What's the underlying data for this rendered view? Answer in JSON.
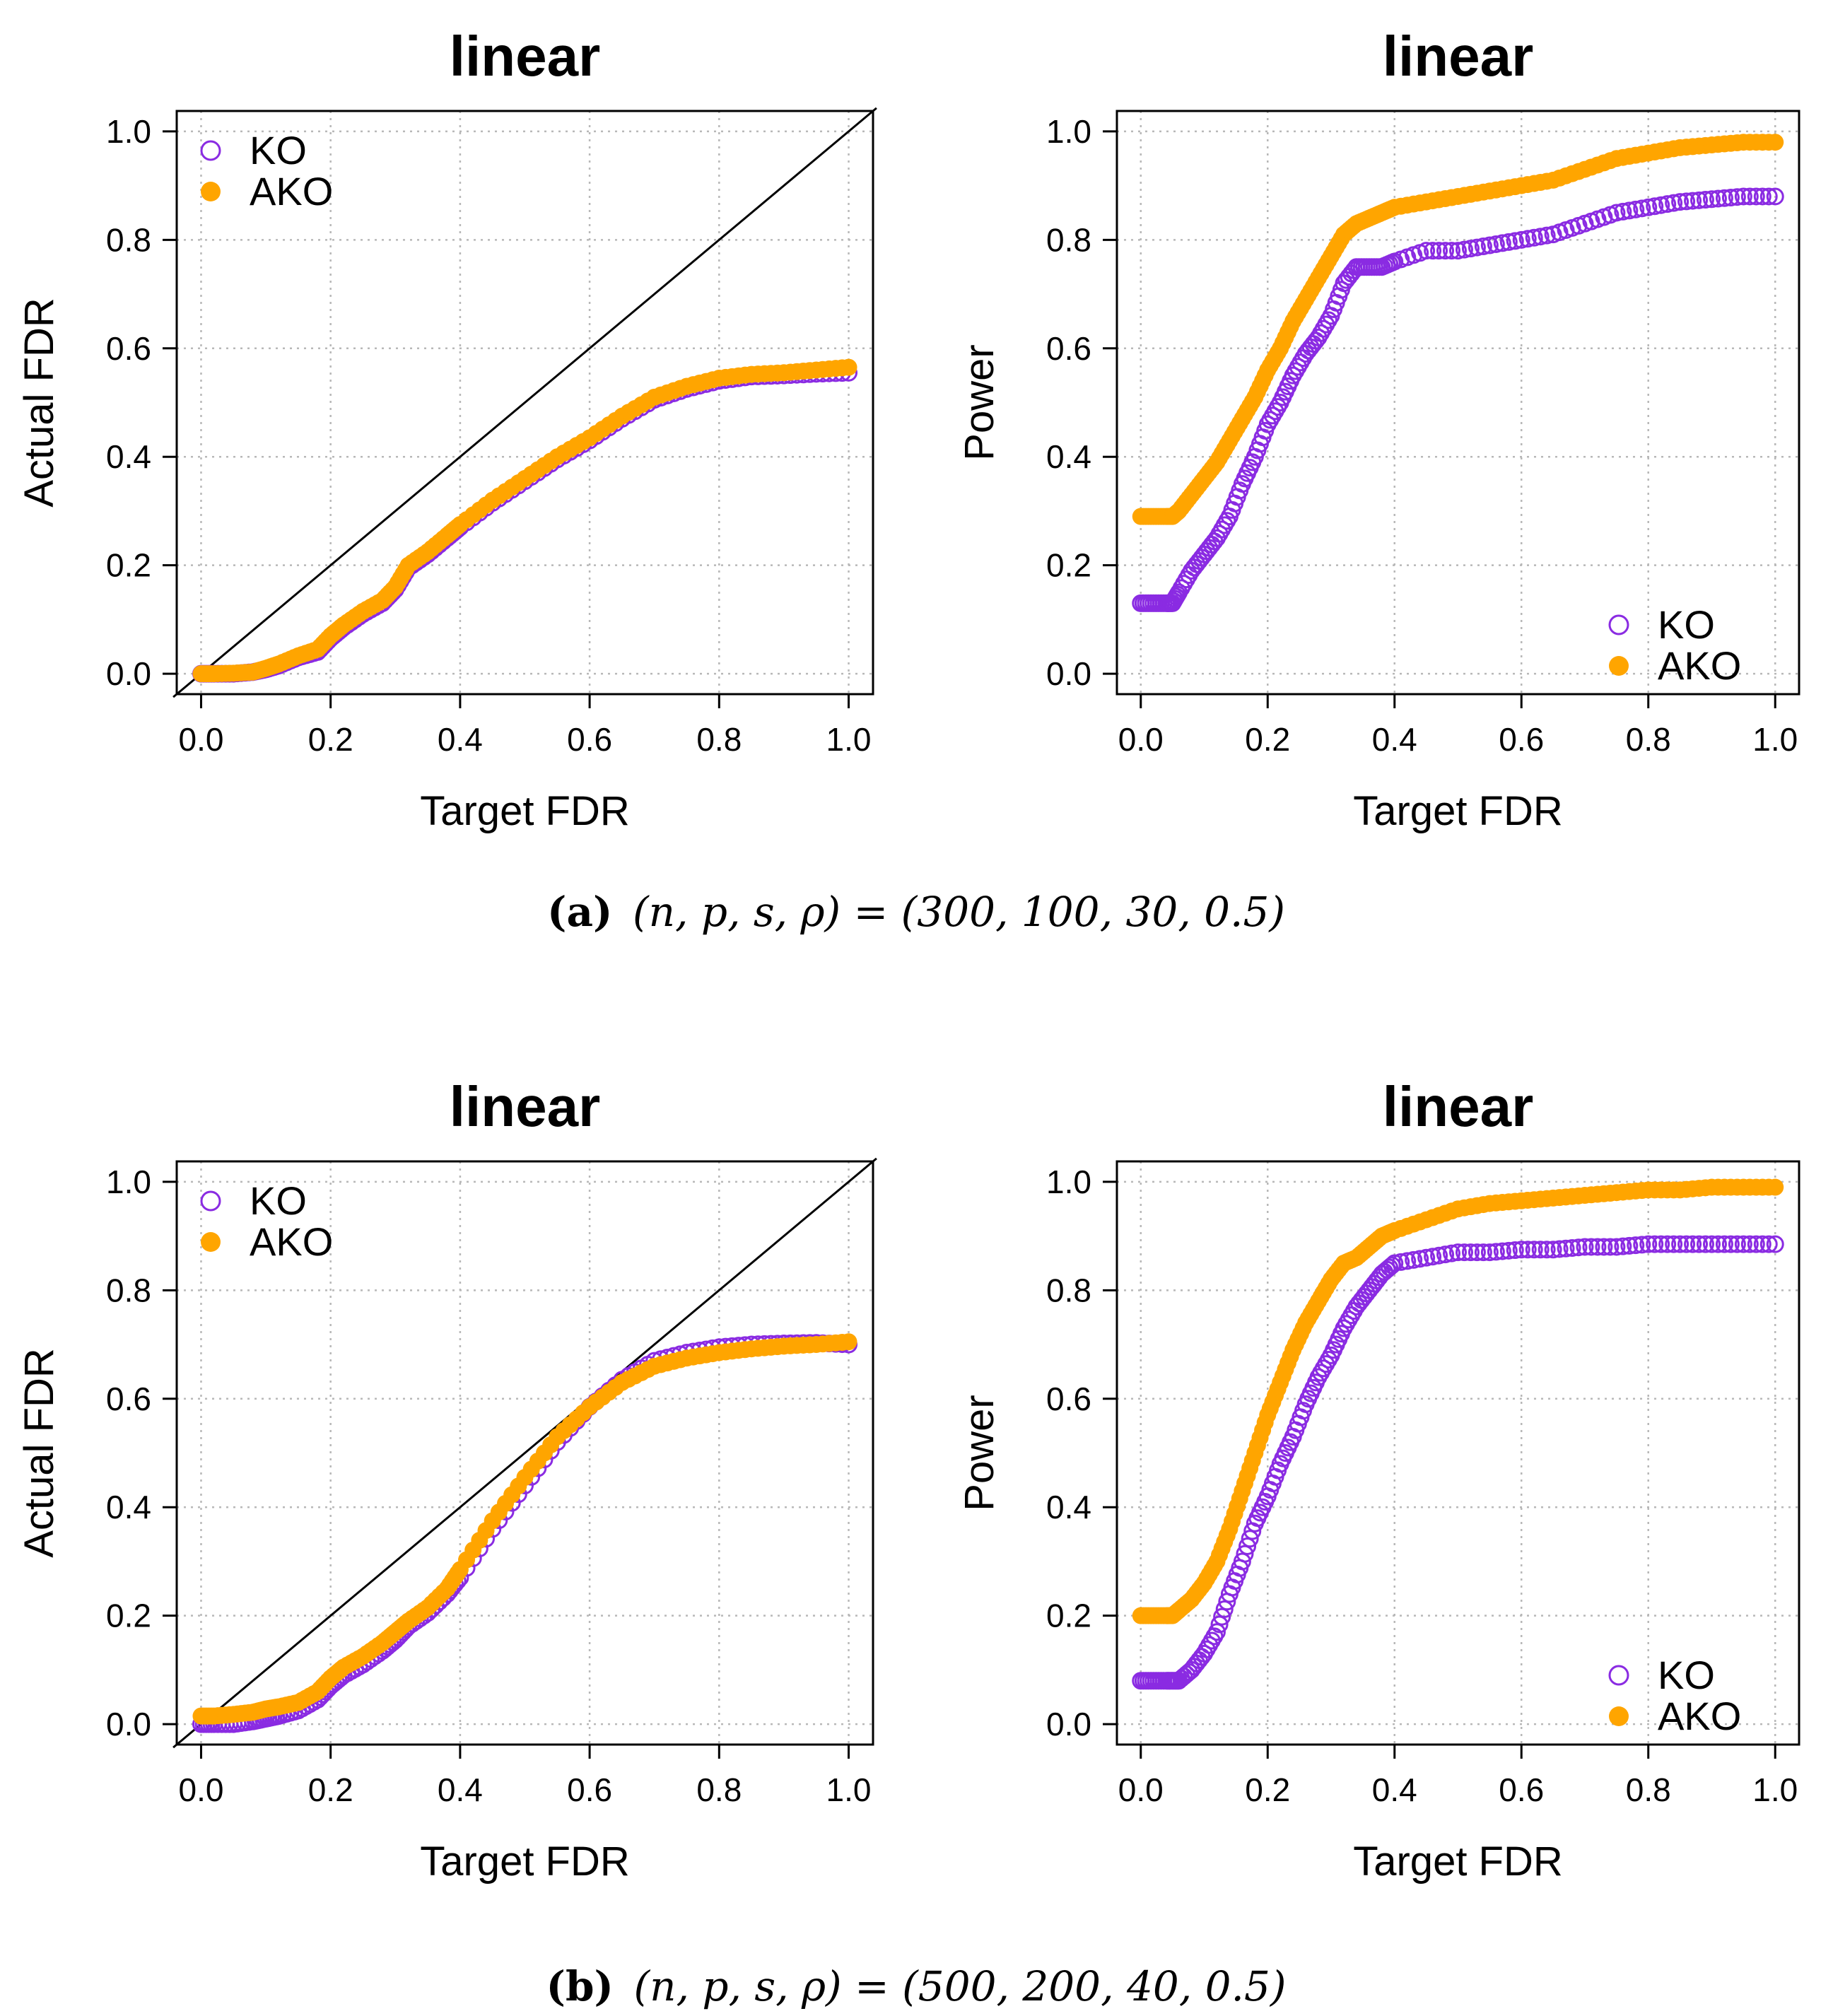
{
  "colors": {
    "ko": "#8a2be2",
    "ako": "#ffa500",
    "grid": "#b8b8b8",
    "diagonal": "#000000",
    "text": "#000000"
  },
  "captions": [
    {
      "label": "(a)",
      "params": "(n, p, s, ρ) = (300, 100, 30, 0.5)"
    },
    {
      "label": "(b)",
      "params": "(n, p, s, ρ) = (500, 200, 40, 0.5)"
    }
  ],
  "chart_data": [
    {
      "id": "a-fdr",
      "type": "scatter",
      "title": "linear",
      "xlabel": "Target FDR",
      "ylabel": "Actual FDR",
      "xlim": [
        0,
        1
      ],
      "ylim": [
        0,
        1
      ],
      "xticks": [
        "0.0",
        "0.2",
        "0.4",
        "0.6",
        "0.8",
        "1.0"
      ],
      "yticks": [
        "0.0",
        "0.2",
        "0.4",
        "0.6",
        "0.8",
        "1.0"
      ],
      "grid": true,
      "diagonal": true,
      "legend": {
        "position": "top-left",
        "entries": [
          "KO",
          "AKO"
        ]
      },
      "series": [
        {
          "name": "KO",
          "marker": "open-circle",
          "x": [
            0,
            0.02,
            0.05,
            0.08,
            0.1,
            0.12,
            0.15,
            0.18,
            0.2,
            0.22,
            0.25,
            0.28,
            0.3,
            0.32,
            0.35,
            0.38,
            0.4,
            0.45,
            0.5,
            0.55,
            0.6,
            0.65,
            0.7,
            0.75,
            0.8,
            0.85,
            0.9,
            0.95,
            1.0
          ],
          "y": [
            0,
            0,
            0,
            0.003,
            0.008,
            0.015,
            0.03,
            0.04,
            0.065,
            0.085,
            0.11,
            0.13,
            0.155,
            0.195,
            0.22,
            0.25,
            0.27,
            0.315,
            0.355,
            0.395,
            0.43,
            0.47,
            0.505,
            0.525,
            0.54,
            0.548,
            0.55,
            0.553,
            0.555
          ]
        },
        {
          "name": "AKO",
          "marker": "filled-circle",
          "x": [
            0,
            0.02,
            0.05,
            0.08,
            0.1,
            0.12,
            0.15,
            0.18,
            0.2,
            0.22,
            0.25,
            0.28,
            0.3,
            0.32,
            0.35,
            0.38,
            0.4,
            0.45,
            0.5,
            0.55,
            0.6,
            0.65,
            0.7,
            0.75,
            0.8,
            0.85,
            0.9,
            0.95,
            1.0
          ],
          "y": [
            0,
            0,
            0.001,
            0.003,
            0.01,
            0.018,
            0.033,
            0.045,
            0.07,
            0.09,
            0.115,
            0.135,
            0.16,
            0.2,
            0.225,
            0.255,
            0.275,
            0.32,
            0.36,
            0.4,
            0.435,
            0.475,
            0.51,
            0.53,
            0.545,
            0.552,
            0.555,
            0.56,
            0.565
          ]
        }
      ]
    },
    {
      "id": "a-power",
      "type": "scatter",
      "title": "linear",
      "xlabel": "Target FDR",
      "ylabel": "Power",
      "xlim": [
        0,
        1
      ],
      "ylim": [
        0,
        1
      ],
      "xticks": [
        "0.0",
        "0.2",
        "0.4",
        "0.6",
        "0.8",
        "1.0"
      ],
      "yticks": [
        "0.0",
        "0.2",
        "0.4",
        "0.6",
        "0.8",
        "1.0"
      ],
      "grid": true,
      "diagonal": false,
      "legend": {
        "position": "bottom-right",
        "entries": [
          "KO",
          "AKO"
        ]
      },
      "series": [
        {
          "name": "KO",
          "marker": "open-circle",
          "x": [
            0,
            0.02,
            0.04,
            0.05,
            0.06,
            0.08,
            0.1,
            0.12,
            0.14,
            0.16,
            0.18,
            0.2,
            0.22,
            0.24,
            0.26,
            0.28,
            0.3,
            0.32,
            0.34,
            0.36,
            0.38,
            0.4,
            0.45,
            0.5,
            0.55,
            0.6,
            0.65,
            0.7,
            0.75,
            0.8,
            0.85,
            0.9,
            0.95,
            1.0
          ],
          "y": [
            0.13,
            0.13,
            0.13,
            0.13,
            0.15,
            0.19,
            0.22,
            0.25,
            0.29,
            0.35,
            0.4,
            0.46,
            0.5,
            0.55,
            0.59,
            0.62,
            0.66,
            0.72,
            0.75,
            0.75,
            0.75,
            0.76,
            0.78,
            0.78,
            0.79,
            0.8,
            0.81,
            0.83,
            0.85,
            0.86,
            0.87,
            0.875,
            0.88,
            0.88
          ]
        },
        {
          "name": "AKO",
          "marker": "filled-circle",
          "x": [
            0,
            0.02,
            0.04,
            0.05,
            0.06,
            0.08,
            0.1,
            0.12,
            0.14,
            0.16,
            0.18,
            0.2,
            0.22,
            0.24,
            0.26,
            0.28,
            0.3,
            0.32,
            0.34,
            0.36,
            0.38,
            0.4,
            0.45,
            0.5,
            0.55,
            0.6,
            0.65,
            0.7,
            0.75,
            0.8,
            0.85,
            0.9,
            0.95,
            1.0
          ],
          "y": [
            0.29,
            0.29,
            0.29,
            0.29,
            0.3,
            0.33,
            0.36,
            0.39,
            0.43,
            0.47,
            0.51,
            0.56,
            0.6,
            0.65,
            0.69,
            0.73,
            0.77,
            0.81,
            0.83,
            0.84,
            0.85,
            0.86,
            0.87,
            0.88,
            0.89,
            0.9,
            0.91,
            0.93,
            0.95,
            0.96,
            0.97,
            0.975,
            0.98,
            0.98
          ]
        }
      ]
    },
    {
      "id": "b-fdr",
      "type": "scatter",
      "title": "linear",
      "xlabel": "Target FDR",
      "ylabel": "Actual FDR",
      "xlim": [
        0,
        1
      ],
      "ylim": [
        0,
        1
      ],
      "xticks": [
        "0.0",
        "0.2",
        "0.4",
        "0.6",
        "0.8",
        "1.0"
      ],
      "yticks": [
        "0.0",
        "0.2",
        "0.4",
        "0.6",
        "0.8",
        "1.0"
      ],
      "grid": true,
      "diagonal": true,
      "legend": {
        "position": "top-left",
        "entries": [
          "KO",
          "AKO"
        ]
      },
      "series": [
        {
          "name": "KO",
          "marker": "open-circle",
          "x": [
            0,
            0.02,
            0.05,
            0.08,
            0.1,
            0.12,
            0.15,
            0.18,
            0.2,
            0.22,
            0.25,
            0.28,
            0.3,
            0.32,
            0.35,
            0.38,
            0.4,
            0.45,
            0.5,
            0.55,
            0.6,
            0.65,
            0.7,
            0.75,
            0.8,
            0.85,
            0.9,
            0.95,
            1.0
          ],
          "y": [
            0,
            0,
            0,
            0.005,
            0.01,
            0.015,
            0.025,
            0.045,
            0.07,
            0.09,
            0.11,
            0.135,
            0.155,
            0.18,
            0.205,
            0.24,
            0.27,
            0.36,
            0.44,
            0.52,
            0.585,
            0.635,
            0.67,
            0.685,
            0.695,
            0.7,
            0.702,
            0.703,
            0.7
          ]
        },
        {
          "name": "AKO",
          "marker": "filled-circle",
          "x": [
            0,
            0.02,
            0.05,
            0.08,
            0.1,
            0.12,
            0.15,
            0.18,
            0.2,
            0.22,
            0.25,
            0.28,
            0.3,
            0.32,
            0.35,
            0.38,
            0.4,
            0.45,
            0.5,
            0.55,
            0.6,
            0.65,
            0.7,
            0.75,
            0.8,
            0.85,
            0.9,
            0.95,
            1.0
          ],
          "y": [
            0.015,
            0.015,
            0.018,
            0.022,
            0.028,
            0.032,
            0.04,
            0.06,
            0.085,
            0.105,
            0.125,
            0.15,
            0.17,
            0.19,
            0.215,
            0.25,
            0.285,
            0.375,
            0.455,
            0.53,
            0.585,
            0.63,
            0.66,
            0.675,
            0.685,
            0.692,
            0.697,
            0.7,
            0.705
          ]
        }
      ]
    },
    {
      "id": "b-power",
      "type": "scatter",
      "title": "linear",
      "xlabel": "Target FDR",
      "ylabel": "Power",
      "xlim": [
        0,
        1
      ],
      "ylim": [
        0,
        1
      ],
      "xticks": [
        "0.0",
        "0.2",
        "0.4",
        "0.6",
        "0.8",
        "1.0"
      ],
      "yticks": [
        "0.0",
        "0.2",
        "0.4",
        "0.6",
        "0.8",
        "1.0"
      ],
      "grid": true,
      "diagonal": false,
      "legend": {
        "position": "bottom-right",
        "entries": [
          "KO",
          "AKO"
        ]
      },
      "series": [
        {
          "name": "KO",
          "marker": "open-circle",
          "x": [
            0,
            0.02,
            0.04,
            0.05,
            0.06,
            0.08,
            0.1,
            0.12,
            0.14,
            0.16,
            0.18,
            0.2,
            0.22,
            0.24,
            0.26,
            0.28,
            0.3,
            0.32,
            0.34,
            0.36,
            0.38,
            0.4,
            0.45,
            0.5,
            0.55,
            0.6,
            0.65,
            0.7,
            0.75,
            0.8,
            0.85,
            0.9,
            0.95,
            1.0
          ],
          "y": [
            0.08,
            0.08,
            0.08,
            0.08,
            0.08,
            0.1,
            0.13,
            0.17,
            0.24,
            0.3,
            0.37,
            0.42,
            0.48,
            0.53,
            0.59,
            0.64,
            0.68,
            0.73,
            0.77,
            0.8,
            0.83,
            0.85,
            0.86,
            0.87,
            0.87,
            0.875,
            0.875,
            0.88,
            0.88,
            0.885,
            0.885,
            0.885,
            0.885,
            0.885
          ]
        },
        {
          "name": "AKO",
          "marker": "filled-circle",
          "x": [
            0,
            0.02,
            0.04,
            0.05,
            0.06,
            0.08,
            0.1,
            0.12,
            0.14,
            0.16,
            0.18,
            0.2,
            0.22,
            0.24,
            0.26,
            0.28,
            0.3,
            0.32,
            0.34,
            0.36,
            0.38,
            0.4,
            0.45,
            0.5,
            0.55,
            0.6,
            0.65,
            0.7,
            0.75,
            0.8,
            0.85,
            0.9,
            0.95,
            1.0
          ],
          "y": [
            0.2,
            0.2,
            0.2,
            0.2,
            0.21,
            0.23,
            0.26,
            0.3,
            0.36,
            0.43,
            0.5,
            0.57,
            0.63,
            0.69,
            0.74,
            0.78,
            0.82,
            0.85,
            0.86,
            0.88,
            0.9,
            0.91,
            0.93,
            0.95,
            0.96,
            0.965,
            0.97,
            0.975,
            0.98,
            0.985,
            0.985,
            0.99,
            0.99,
            0.99
          ]
        }
      ]
    }
  ]
}
